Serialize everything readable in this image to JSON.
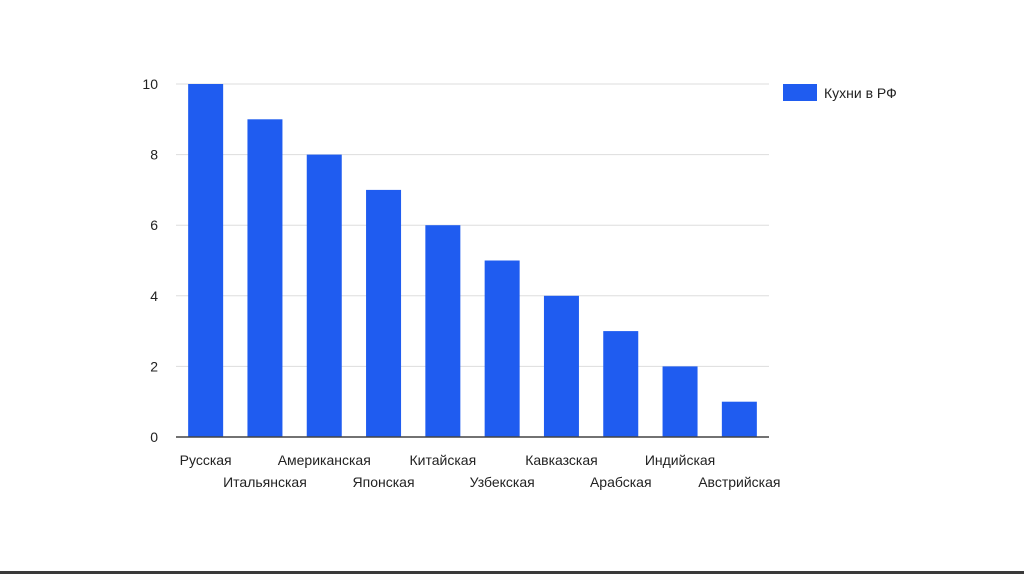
{
  "chart_data": {
    "type": "bar",
    "categories": [
      "Русская",
      "Итальянская",
      "Американская",
      "Японская",
      "Китайская",
      "Узбекская",
      "Кавказская",
      "Арабская",
      "Индийская",
      "Австрийская"
    ],
    "series": [
      {
        "name": "Кухни в РФ",
        "values": [
          10,
          9,
          8,
          7,
          6,
          5,
          4,
          3,
          2,
          1
        ]
      }
    ],
    "ylim": [
      0,
      10
    ],
    "yticks": [
      0,
      2,
      4,
      6,
      8,
      10
    ],
    "grid": true,
    "legend": "right",
    "colors": {
      "bar": "#1f5cf0",
      "grid": "#dddddd",
      "axis": "#444444"
    },
    "title": "",
    "xlabel": "",
    "ylabel": ""
  }
}
